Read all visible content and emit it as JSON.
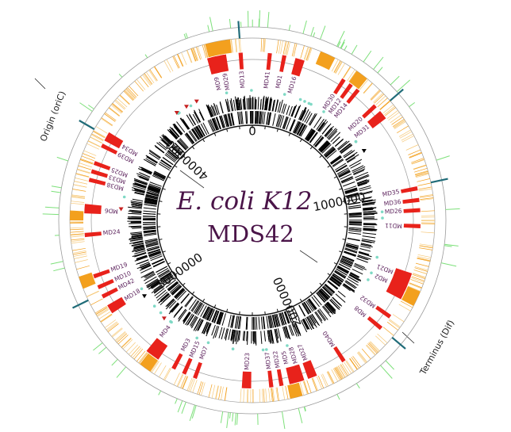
{
  "title": {
    "organism": "E. coli K12",
    "strain": "MDS42"
  },
  "landmarks": {
    "origin": "Origin (oriC)",
    "terminus": "Terminus (Dif)"
  },
  "position_labels": [
    {
      "text": "0",
      "value": 0
    },
    {
      "text": "1000000",
      "value": 1000000
    },
    {
      "text": "2000000",
      "value": 2000000
    },
    {
      "text": "3000000",
      "value": 3000000
    },
    {
      "text": "4000000",
      "value": 4000000
    }
  ],
  "deletions": [
    {
      "label": "MD9",
      "angle": -14
    },
    {
      "label": "MD29",
      "angle": -10.5
    },
    {
      "label": "MD13",
      "angle": -4
    },
    {
      "label": "MD41",
      "angle": 6
    },
    {
      "label": "MD1",
      "angle": 11
    },
    {
      "label": "MD16",
      "angle": 16.5
    },
    {
      "label": "MD30",
      "angle": 33
    },
    {
      "label": "MD12",
      "angle": 36
    },
    {
      "label": "MD14",
      "angle": 39
    },
    {
      "label": "MD20",
      "angle": 47
    },
    {
      "label": "MD31",
      "angle": 51
    },
    {
      "label": "MD35",
      "angle": 79
    },
    {
      "label": "MD36",
      "angle": 83
    },
    {
      "label": "MD26",
      "angle": 86.5
    },
    {
      "label": "MD11",
      "angle": 92
    },
    {
      "label": "MD21",
      "angle": 110
    },
    {
      "label": "MD2",
      "angle": 114
    },
    {
      "label": "MD32",
      "angle": 125
    },
    {
      "label": "MD8",
      "angle": 130
    },
    {
      "label": "MD40",
      "angle": 147
    },
    {
      "label": "MD27",
      "angle": 159
    },
    {
      "label": "MD28",
      "angle": 163
    },
    {
      "label": "MD5",
      "angle": 166.5
    },
    {
      "label": "MD22",
      "angle": 170
    },
    {
      "label": "MD37",
      "angle": 173.5
    },
    {
      "label": "MD23",
      "angle": 182
    },
    {
      "label": "MD7",
      "angle": 200
    },
    {
      "label": "MD15",
      "angle": 204
    },
    {
      "label": "MD3",
      "angle": 208
    },
    {
      "label": "MD4",
      "angle": 218
    },
    {
      "label": "MD18",
      "angle": 238
    },
    {
      "label": "MD42",
      "angle": 243
    },
    {
      "label": "MD10",
      "angle": 246.5
    },
    {
      "label": "MD19",
      "angle": 250.5
    },
    {
      "label": "MD24",
      "angle": 265
    },
    {
      "label": "MD6",
      "angle": 274
    },
    {
      "label": "MD38",
      "angle": 284
    },
    {
      "label": "MD33",
      "angle": 287
    },
    {
      "label": "MD25",
      "angle": 290
    },
    {
      "label": "MD39",
      "angle": 296.5
    },
    {
      "label": "MD34",
      "angle": 300
    }
  ],
  "colors": {
    "deletion": "#e8221b",
    "feature": "#f3a01e",
    "feature_light": "#f6c877",
    "tick": "#7de07a",
    "marker": "#1f6b78",
    "label": "#5a1f5a",
    "gene": "#000000",
    "rna_dot": "#7fd9c5",
    "triangle_red": "#c62020"
  }
}
